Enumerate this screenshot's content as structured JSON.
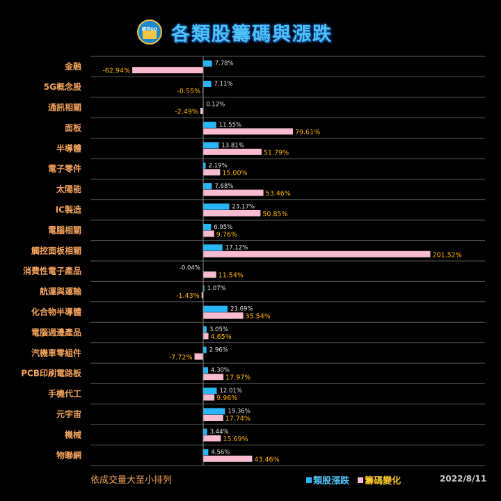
{
  "header": {
    "logo_text": "銀河GO",
    "title": "各類股籌碼與漲跌"
  },
  "footer": {
    "note": "依成交量大至小排列",
    "date": "2022/8/11"
  },
  "colors": {
    "background": "#000000",
    "series1": "#29b6f6",
    "series2": "#f8bbd0",
    "category_label": "#f5a35c",
    "positive_label_1": "#e0e0e0",
    "label_2": "#ffb300"
  },
  "chart_data": {
    "type": "bar",
    "orientation": "horizontal",
    "categories": [
      "金融",
      "5G概念股",
      "通訊相關",
      "面板",
      "半導體",
      "電子零件",
      "太陽能",
      "IC製造",
      "電腦相關",
      "觸控面板相關",
      "消費性電子產品",
      "航運與運輸",
      "化合物半導體",
      "電腦週邊產品",
      "汽機車零組件",
      "PCB印刷電路板",
      "手機代工",
      "元宇宙",
      "機械",
      "物聯網"
    ],
    "series": [
      {
        "name": "類股漲跌",
        "values": [
          7.78,
          7.11,
          0.12,
          11.55,
          13.81,
          2.19,
          7.68,
          23.17,
          6.95,
          17.12,
          -0.04,
          1.07,
          21.69,
          3.05,
          2.96,
          4.3,
          12.01,
          19.36,
          3.44,
          4.56
        ],
        "labels": [
          "7.78%",
          "7.11%",
          "0.12%",
          "11.55%",
          "13.81%",
          "2.19%",
          "7.68%",
          "23.17%",
          "6.95%",
          "17.12%",
          "-0.04%",
          "1.07%",
          "21.69%",
          "3.05%",
          "2.96%",
          "4.30%",
          "12.01%",
          "19.36%",
          "3.44%",
          "4.56%"
        ]
      },
      {
        "name": "籌碼變化",
        "values": [
          -62.94,
          -0.55,
          -2.49,
          79.61,
          51.79,
          15.0,
          53.46,
          50.85,
          9.76,
          201.52,
          11.54,
          -1.43,
          35.54,
          4.65,
          -7.72,
          17.97,
          9.96,
          17.74,
          15.69,
          43.46
        ],
        "labels": [
          "-62.94%",
          "-0.55%",
          "-2.49%",
          "79.61%",
          "51.79%",
          "15.00%",
          "53.46%",
          "50.85%",
          "9.76%",
          "201.52%",
          "11.54%",
          "-1.43%",
          "35.54%",
          "4.65%",
          "-7.72%",
          "17.97%",
          "9.96%",
          "17.74%",
          "15.69%",
          "43.46%"
        ]
      }
    ],
    "legend_position": "bottom-right",
    "grid": "horizontal separators"
  }
}
